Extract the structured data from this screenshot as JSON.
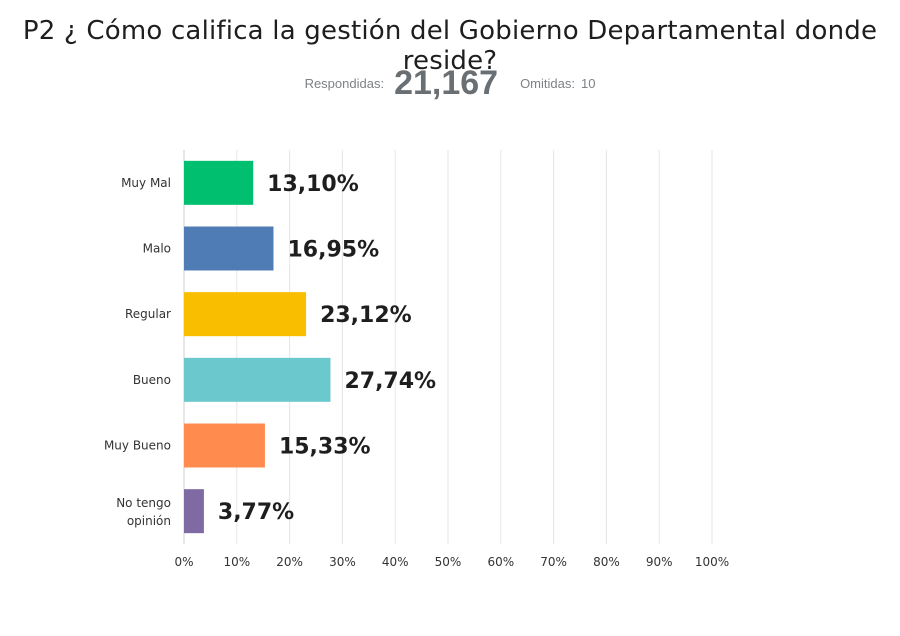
{
  "header": {
    "title": "P2 ¿ Cómo califica la gestión del  Gobierno Departamental donde reside?",
    "answered_label": "Respondidas:",
    "answered_value": "21,167",
    "skipped_label": "Omitidas:",
    "skipped_value": "10"
  },
  "chart_data": {
    "type": "bar",
    "orientation": "horizontal",
    "title": "P2 ¿ Cómo califica la gestión del  Gobierno Departamental donde reside?",
    "categories": [
      "Muy Mal",
      "Malo",
      "Regular",
      "Bueno",
      "Muy Bueno",
      "No tengo opinión"
    ],
    "values": [
      13.1,
      16.95,
      23.12,
      27.74,
      15.33,
      3.77
    ],
    "value_labels": [
      "13,10%",
      "16,95%",
      "23,12%",
      "27,74%",
      "15,33%",
      "3,77%"
    ],
    "colors": [
      "#00bf6f",
      "#507cb6",
      "#f9be00",
      "#6bc8cd",
      "#ff8b4f",
      "#7f6aa3"
    ],
    "xlim": [
      0,
      100
    ],
    "x_ticks": [
      "0%",
      "10%",
      "20%",
      "30%",
      "40%",
      "50%",
      "60%",
      "70%",
      "80%",
      "90%",
      "100%"
    ],
    "grid": true,
    "gridline_color": "#e6e6e6"
  }
}
